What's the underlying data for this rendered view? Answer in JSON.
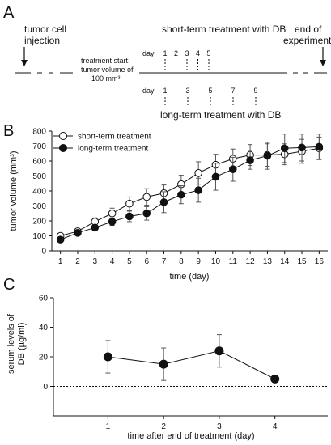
{
  "panels": {
    "a": {
      "letter": "A",
      "tumor_injection": [
        "tumor cell",
        "injection"
      ],
      "end_experiment": [
        "end of",
        "experiment"
      ],
      "treatment_start": [
        "treatment start:",
        "tumor volume of",
        "100 mm³"
      ],
      "short_term_title": "short-term treatment  with DB",
      "long_term_title": "long-term treatment with DB",
      "day_label": "day",
      "short_term_days": [
        "1",
        "2",
        "3",
        "4",
        "5"
      ],
      "long_term_days": [
        "1",
        "3",
        "5",
        "7",
        "9"
      ]
    },
    "b": {
      "letter": "B"
    },
    "c": {
      "letter": "C"
    }
  },
  "chart_data": [
    {
      "type": "line",
      "panel": "B",
      "xlabel": "time (day)",
      "ylabel": "tumor volume (mm³)",
      "x": [
        1,
        2,
        3,
        4,
        5,
        6,
        7,
        8,
        9,
        10,
        11,
        12,
        13,
        14,
        15,
        16
      ],
      "xlim": [
        0.5,
        16.5
      ],
      "ylim": [
        0,
        800
      ],
      "yticks": [
        0,
        100,
        200,
        300,
        400,
        500,
        600,
        700,
        800
      ],
      "legend_position": "top-left",
      "series": [
        {
          "name": "short-term treatment",
          "marker": "open-circle",
          "values": [
            100,
            130,
            195,
            250,
            315,
            360,
            385,
            445,
            520,
            575,
            615,
            640,
            640,
            645,
            665,
            685
          ],
          "errors": [
            15,
            15,
            25,
            35,
            45,
            55,
            55,
            60,
            75,
            70,
            65,
            70,
            75,
            70,
            80,
            75
          ]
        },
        {
          "name": "long-term treatment",
          "marker": "filled-circle",
          "values": [
            75,
            120,
            155,
            195,
            230,
            250,
            325,
            375,
            405,
            495,
            545,
            605,
            635,
            685,
            690,
            695
          ],
          "errors": [
            10,
            15,
            20,
            25,
            35,
            45,
            70,
            60,
            80,
            90,
            80,
            60,
            90,
            95,
            90,
            85
          ]
        }
      ]
    },
    {
      "type": "line",
      "panel": "C",
      "xlabel": "time after end of treatment  (day)",
      "ylabel": [
        "serum levels of",
        "DB (µg/ml)"
      ],
      "x": [
        1,
        2,
        3,
        4
      ],
      "xlim": [
        0.02,
        4.95
      ],
      "ylim": [
        -20,
        60
      ],
      "yticks": [
        0,
        20,
        40,
        60
      ],
      "reference_line": 0,
      "series": [
        {
          "marker": "filled-circle",
          "values": [
            20,
            15,
            24,
            5
          ],
          "errors": [
            11,
            11,
            11,
            2
          ]
        }
      ]
    }
  ]
}
